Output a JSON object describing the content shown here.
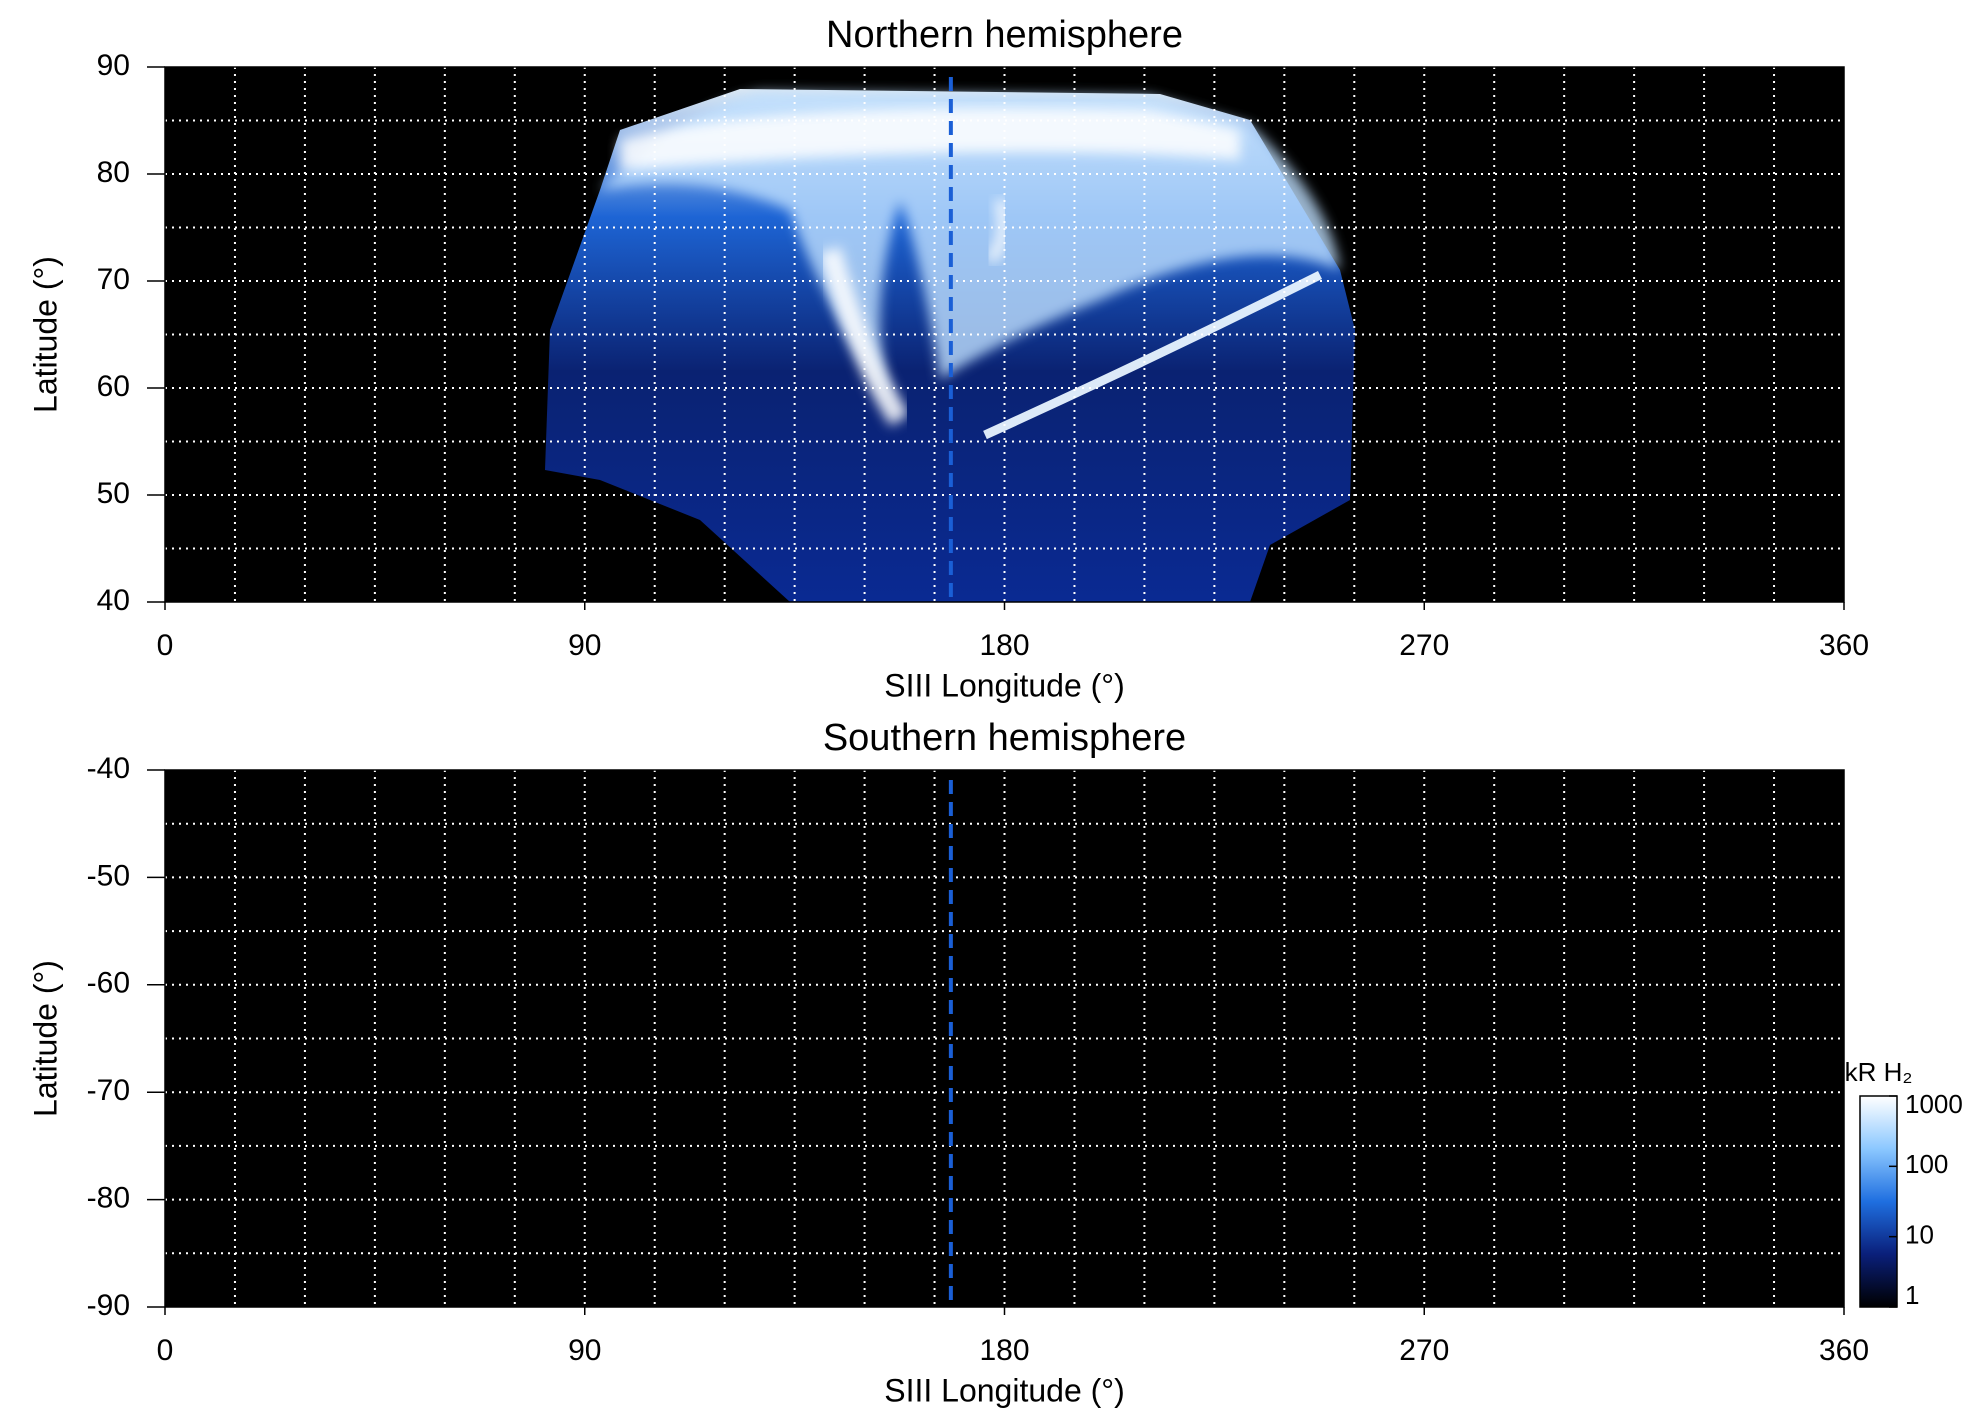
{
  "chart_data": [
    {
      "type": "heatmap",
      "title": "Northern hemisphere",
      "xlabel": "SIII Longitude (°)",
      "ylabel": "Latitude (°)",
      "xlim": [
        0,
        360
      ],
      "xticks": [
        0,
        90,
        180,
        270,
        360
      ],
      "ylim": [
        40,
        90
      ],
      "yticks": [
        40,
        50,
        60,
        70,
        80,
        90
      ],
      "xgrid": [
        15,
        30,
        45,
        60,
        75,
        90,
        105,
        120,
        135,
        150,
        165,
        180,
        195,
        210,
        225,
        240,
        255,
        270,
        285,
        300,
        315,
        330,
        345
      ],
      "ygrid": [
        45,
        50,
        55,
        60,
        65,
        70,
        75,
        80,
        85
      ],
      "reference_line_x": 168.5,
      "reference_line_color": "#1a5fd6",
      "background": "#000000",
      "grid_color": "#ffffff"
    },
    {
      "type": "heatmap",
      "title": "Southern hemisphere",
      "xlabel": "SIII Longitude (°)",
      "ylabel": "Latitude (°)",
      "xlim": [
        0,
        360
      ],
      "xticks": [
        0,
        90,
        180,
        270,
        360
      ],
      "ylim": [
        -90,
        -40
      ],
      "yticks": [
        -90,
        -80,
        -70,
        -60,
        -50,
        -40
      ],
      "xgrid": [
        15,
        30,
        45,
        60,
        75,
        90,
        105,
        120,
        135,
        150,
        165,
        180,
        195,
        210,
        225,
        240,
        255,
        270,
        285,
        300,
        315,
        330,
        345
      ],
      "ygrid": [
        -85,
        -80,
        -75,
        -70,
        -65,
        -60,
        -55,
        -50,
        -45
      ],
      "reference_line_x": 168.5,
      "reference_line_color": "#1a5fd6",
      "background": "#000000",
      "grid_color": "#ffffff",
      "colorbar": {
        "label": "kR H₂",
        "lim": [
          1,
          1000
        ],
        "ticks": [
          1,
          10,
          100,
          1000
        ],
        "log": true,
        "colors": [
          "#000000",
          "#0a1f7a",
          "#1f6fe0",
          "#8cc8ff",
          "#ffffff"
        ]
      }
    }
  ]
}
